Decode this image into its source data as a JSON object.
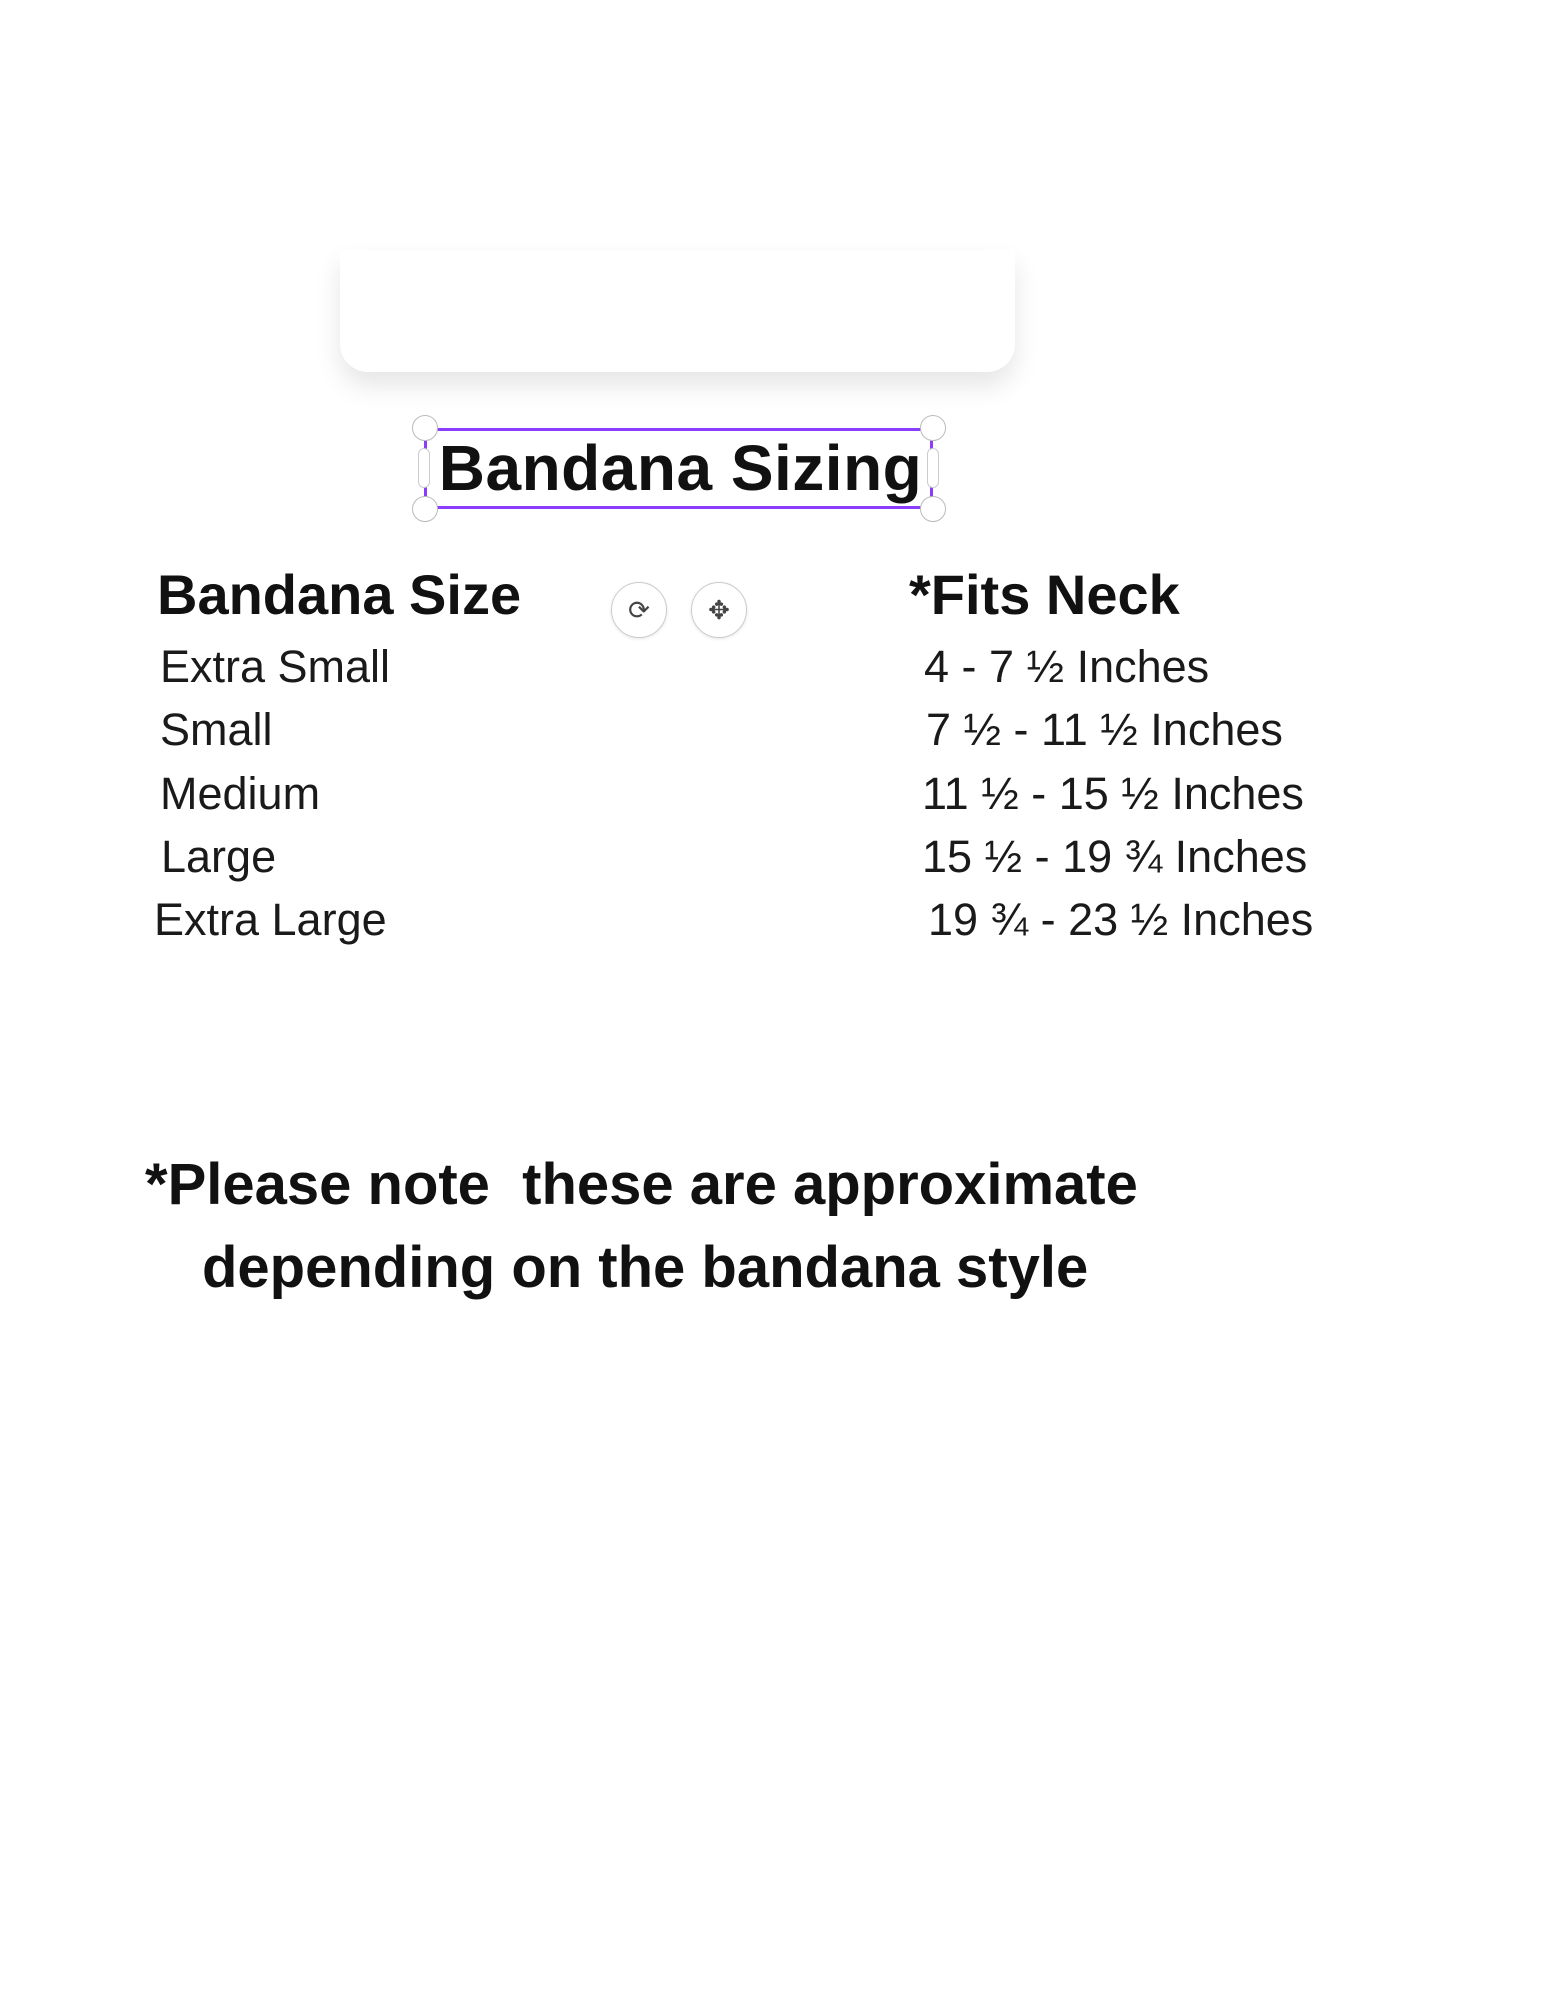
{
  "title": "Bandana Sizing",
  "table": {
    "headers": [
      "Bandana Size",
      "*Fits Neck"
    ],
    "rows": [
      {
        "size": "Extra Small",
        "fit": "4 - 7 ½ Inches"
      },
      {
        "size": "Small",
        "fit": "7 ½ - 11 ½ Inches"
      },
      {
        "size": "Medium",
        "fit": "11 ½ - 15 ½ Inches"
      },
      {
        "size": "Large",
        "fit": "15 ½ - 19 ¾ Inches"
      },
      {
        "size": "Extra Large",
        "fit": "19 ¾ - 23 ½ Inches"
      }
    ]
  },
  "note": {
    "line1": "*Please note  these are approximate",
    "line2": "depending on the bandana style"
  },
  "controls": {
    "rotate_icon": "rotate-icon",
    "move_icon": "move-icon"
  },
  "colors": {
    "selection": "#8b3dff"
  }
}
